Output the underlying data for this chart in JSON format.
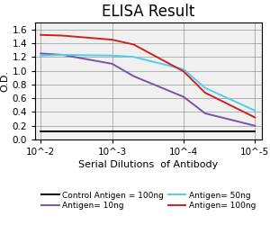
{
  "title": "ELISA Result",
  "ylabel": "O.D.",
  "xlabel": "Serial Dilutions  of Antibody",
  "x_ticks": [
    0.01,
    0.001,
    0.0001,
    1e-05
  ],
  "x_tick_labels": [
    "10^-2",
    "10^-3",
    "10^-4",
    "10^-5"
  ],
  "ylim": [
    0,
    1.7
  ],
  "yticks": [
    0,
    0.2,
    0.4,
    0.6,
    0.8,
    1.0,
    1.2,
    1.4,
    1.6
  ],
  "lines": {
    "control": {
      "color": "black",
      "label": "Control Antigen = 100ng",
      "x": [
        0.01,
        0.005,
        0.001,
        0.0005,
        0.0001,
        5e-05,
        1e-05
      ],
      "y": [
        0.12,
        0.12,
        0.12,
        0.12,
        0.12,
        0.12,
        0.12
      ]
    },
    "antigen10": {
      "color": "#7B52AB",
      "label": "Antigen= 10ng",
      "x": [
        0.01,
        0.005,
        0.001,
        0.0005,
        0.0001,
        5e-05,
        1e-05
      ],
      "y": [
        1.25,
        1.23,
        1.1,
        0.92,
        0.62,
        0.38,
        0.2
      ]
    },
    "antigen50": {
      "color": "#55CCEE",
      "label": "Antigen= 50ng",
      "x": [
        0.01,
        0.005,
        0.001,
        0.0005,
        0.0001,
        5e-05,
        1e-05
      ],
      "y": [
        1.22,
        1.23,
        1.22,
        1.2,
        1.02,
        0.75,
        0.42
      ]
    },
    "antigen100": {
      "color": "#CC2222",
      "label": "Antigen= 100ng",
      "x": [
        0.01,
        0.005,
        0.001,
        0.0005,
        0.0001,
        5e-05,
        1e-05
      ],
      "y": [
        1.52,
        1.51,
        1.45,
        1.38,
        0.99,
        0.68,
        0.32
      ]
    }
  },
  "background_color": "#f0f0f0",
  "title_fontsize": 12,
  "axis_label_fontsize": 8,
  "tick_fontsize": 7.5,
  "legend_fontsize": 6.5
}
